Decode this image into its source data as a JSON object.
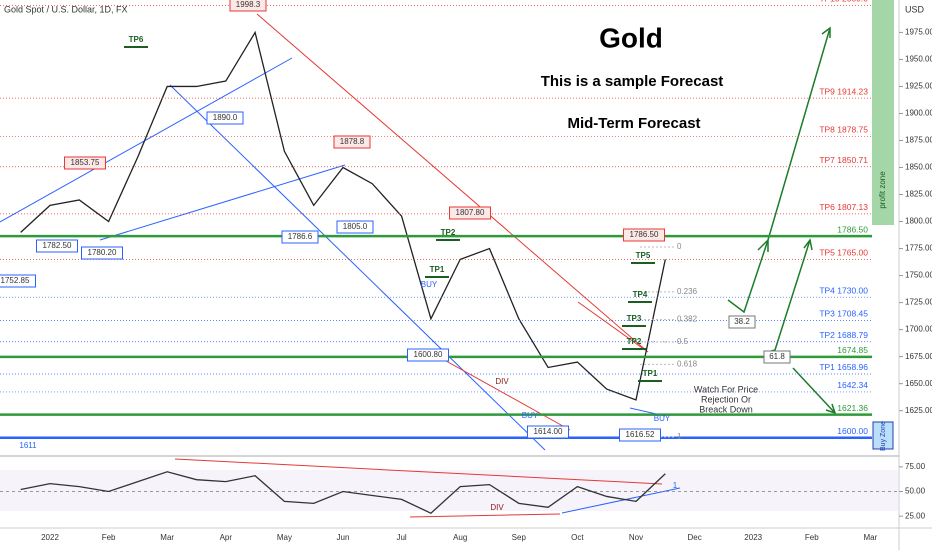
{
  "header": {
    "symbol": "Gold Spot / U.S. Dollar, 1D, FX",
    "currency": "USD"
  },
  "overlay": {
    "title": "Gold",
    "subtitle": "This is a sample Forecast",
    "note": "Mid-Term Forecast"
  },
  "zones": {
    "profit": "profit zone",
    "buy": "Buy Zone"
  },
  "chart_data": [
    {
      "type": "line",
      "color": "#222222",
      "categories": [
        null,
        "2022",
        null,
        "Feb",
        null,
        "Mar",
        null,
        "Apr",
        null,
        "May",
        null,
        "Jun",
        null,
        "Jul",
        null,
        "Aug",
        null,
        "Sep",
        null,
        "Oct",
        null,
        "Nov",
        null,
        "Dec",
        null,
        "2023",
        null,
        "Feb",
        null,
        "Mar"
      ],
      "values": [
        1790,
        1815,
        1820,
        1800,
        1860,
        1925,
        1925,
        1930,
        1975,
        1865,
        1815,
        1850,
        1835,
        1805,
        1710,
        1765,
        1775,
        1710,
        1665,
        1670,
        1645,
        1635,
        1765,
        null,
        null,
        null,
        null,
        null,
        null,
        null
      ],
      "ylim": [
        1584,
        2005
      ],
      "yticks": [
        {
          "value": 1625,
          "label": "1625.00"
        },
        {
          "value": 1650,
          "label": "1650.00"
        },
        {
          "value": 1675,
          "label": "1675.00"
        },
        {
          "value": 1700,
          "label": "1700.00"
        },
        {
          "value": 1725,
          "label": "1725.00"
        },
        {
          "value": 1750,
          "label": "1750.00"
        },
        {
          "value": 1775,
          "label": "1775.00"
        },
        {
          "value": 1800,
          "label": "1800.00"
        },
        {
          "value": 1825,
          "label": "1825.00"
        },
        {
          "value": 1850,
          "label": "1850.00"
        },
        {
          "value": 1875,
          "label": "1875.00"
        },
        {
          "value": 1900,
          "label": "1900.00"
        },
        {
          "value": 1925,
          "label": "1925.00"
        },
        {
          "value": 1950,
          "label": "1950.00"
        },
        {
          "value": 1975,
          "label": "1975.00"
        }
      ],
      "levels": [
        {
          "label": "TP10 2000.0",
          "value": 2000,
          "color": "#e53935"
        },
        {
          "label": "TP9 1914.23",
          "value": 1914.23,
          "color": "#e53935"
        },
        {
          "label": "TP8 1878.75",
          "value": 1878.75,
          "color": "#e53935"
        },
        {
          "label": "TP7 1850.71",
          "value": 1850.71,
          "color": "#e53935"
        },
        {
          "label": "TP6 1807.13",
          "value": 1807.13,
          "color": "#e53935"
        },
        {
          "label": "1786.50",
          "value": 1786.5,
          "color": "#2e9a3a"
        },
        {
          "label": "TP5 1765.00",
          "value": 1765,
          "color": "#e53935"
        },
        {
          "label": "TP4 1730.00",
          "value": 1730,
          "color": "#2962ff"
        },
        {
          "label": "TP3 1708.45",
          "value": 1708.45,
          "color": "#2962ff"
        },
        {
          "label": "TP2 1688.79",
          "value": 1688.79,
          "color": "#2962ff"
        },
        {
          "label": "1674.85",
          "value": 1674.85,
          "color": "#2e9a3a"
        },
        {
          "label": "TP1 1658.96",
          "value": 1658.96,
          "color": "#2962ff"
        },
        {
          "label": "1642.34",
          "value": 1642.34,
          "color": "#2962ff"
        },
        {
          "label": "1621.36",
          "value": 1621.36,
          "color": "#2e9a3a"
        },
        {
          "label": "1600.00",
          "value": 1600,
          "color": "#2962ff"
        }
      ],
      "fib": [
        0,
        0.236,
        0.382,
        0.5,
        0.618,
        1
      ]
    },
    {
      "type": "line",
      "color": "#333333",
      "values": [
        52,
        58,
        55,
        50,
        60,
        70,
        62,
        60,
        66,
        40,
        38,
        50,
        46,
        42,
        28,
        55,
        57,
        38,
        34,
        55,
        45,
        40,
        68,
        null,
        null,
        null,
        null,
        null,
        null,
        null
      ],
      "ylim": [
        13,
        85
      ],
      "yticks": [
        {
          "value": 25,
          "label": "25.00"
        },
        {
          "value": 50,
          "label": "50.00"
        },
        {
          "value": 75,
          "label": "75.00"
        }
      ]
    }
  ],
  "annotations": [
    {
      "text": "1998.3"
    },
    {
      "text": "1853.75"
    },
    {
      "text": "1878.8"
    },
    {
      "text": "1807.80"
    },
    {
      "text": "1786.50"
    },
    {
      "text": "1890.0"
    },
    {
      "text": "1786.6"
    },
    {
      "text": "1805.0"
    },
    {
      "text": "1782.50"
    },
    {
      "text": "1780.20"
    },
    {
      "text": "1752.85"
    },
    {
      "text": "1600.80"
    },
    {
      "text": "1614.00"
    },
    {
      "text": "1616.52"
    },
    {
      "text": "1611"
    },
    {
      "text": "TP6"
    },
    {
      "text": "TP2"
    },
    {
      "text": "TP1"
    },
    {
      "text": "BUY"
    },
    {
      "text": "DIV"
    },
    {
      "text": "BUY"
    },
    {
      "text": "TP5"
    },
    {
      "text": "TP4"
    },
    {
      "text": "TP3"
    },
    {
      "text": "TP2"
    },
    {
      "text": "TP1"
    },
    {
      "text": "BUY"
    },
    {
      "text": "38.2"
    },
    {
      "text": "61.8"
    },
    {
      "text": "DIV"
    },
    {
      "text": "1"
    }
  ],
  "watch_note": [
    "Watch For Price",
    "Rejection Or",
    "Breack Down"
  ]
}
